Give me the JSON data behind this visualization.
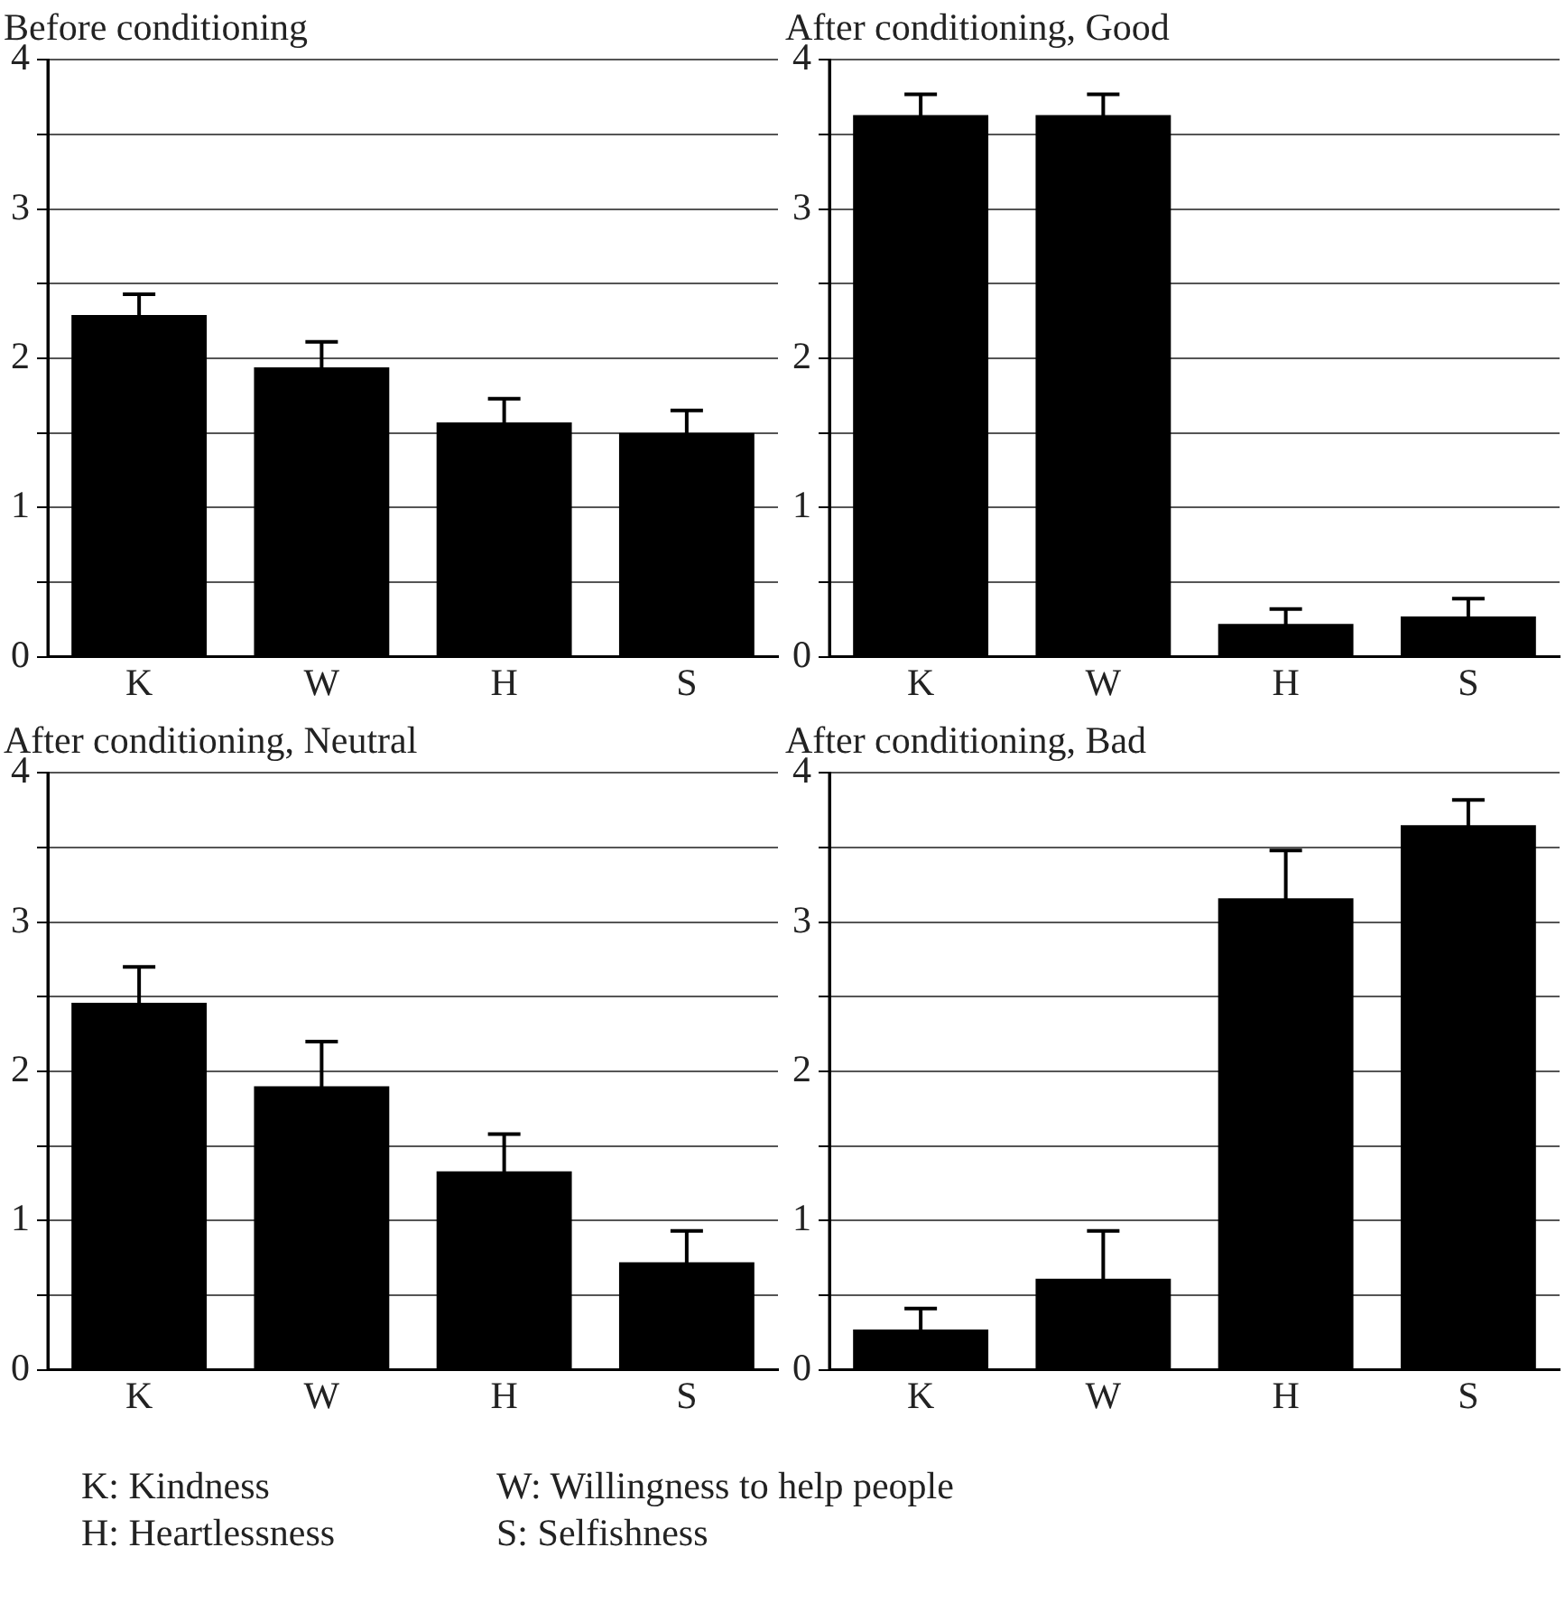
{
  "chart_data": [
    {
      "type": "bar",
      "title": "Before conditioning",
      "categories": [
        "K",
        "W",
        "H",
        "S"
      ],
      "values": [
        2.29,
        1.94,
        1.57,
        1.5
      ],
      "errors": [
        0.14,
        0.17,
        0.16,
        0.15
      ],
      "color": "#000000",
      "ylim": [
        0,
        4
      ],
      "yticks": [
        0,
        {
          "value": 0.5,
          "label": null
        },
        1,
        {
          "value": 1.5,
          "label": null
        },
        2,
        {
          "value": 2.5,
          "label": null
        },
        3,
        {
          "value": 3.5,
          "label": null
        },
        4
      ],
      "grid": "y",
      "legend": false
    },
    {
      "type": "bar",
      "title": "After conditioning, Good",
      "categories": [
        "K",
        "W",
        "H",
        "S"
      ],
      "values": [
        3.63,
        3.63,
        0.22,
        0.27
      ],
      "errors": [
        0.14,
        0.14,
        0.1,
        0.12
      ],
      "color": "#000000",
      "ylim": [
        0,
        4
      ],
      "yticks": [
        0,
        {
          "value": 0.5,
          "label": null
        },
        1,
        {
          "value": 1.5,
          "label": null
        },
        2,
        {
          "value": 2.5,
          "label": null
        },
        3,
        {
          "value": 3.5,
          "label": null
        },
        4
      ],
      "grid": "y",
      "legend": false
    },
    {
      "type": "bar",
      "title": "After conditioning, Neutral",
      "categories": [
        "K",
        "W",
        "H",
        "S"
      ],
      "values": [
        2.46,
        1.9,
        1.33,
        0.72
      ],
      "errors": [
        0.24,
        0.3,
        0.25,
        0.21
      ],
      "color": "#000000",
      "ylim": [
        0,
        4
      ],
      "yticks": [
        0,
        {
          "value": 0.5,
          "label": null
        },
        1,
        {
          "value": 1.5,
          "label": null
        },
        2,
        {
          "value": 2.5,
          "label": null
        },
        3,
        {
          "value": 3.5,
          "label": null
        },
        4
      ],
      "grid": "y",
      "legend": false
    },
    {
      "type": "bar",
      "title": "After conditioning, Bad",
      "categories": [
        "K",
        "W",
        "H",
        "S"
      ],
      "values": [
        0.27,
        0.61,
        3.16,
        3.65
      ],
      "errors": [
        0.14,
        0.32,
        0.32,
        0.17
      ],
      "color": "#000000",
      "ylim": [
        0,
        4
      ],
      "yticks": [
        0,
        {
          "value": 0.5,
          "label": null
        },
        1,
        {
          "value": 1.5,
          "label": null
        },
        2,
        {
          "value": 2.5,
          "label": null
        },
        3,
        {
          "value": 3.5,
          "label": null
        },
        4
      ],
      "grid": "y",
      "legend": false
    },
    {
      "type": "other",
      "annotations": [
        "K: Kindness",
        "W: Willingness to help people",
        "H: Heartlessness",
        "S: Selfishness"
      ]
    }
  ]
}
